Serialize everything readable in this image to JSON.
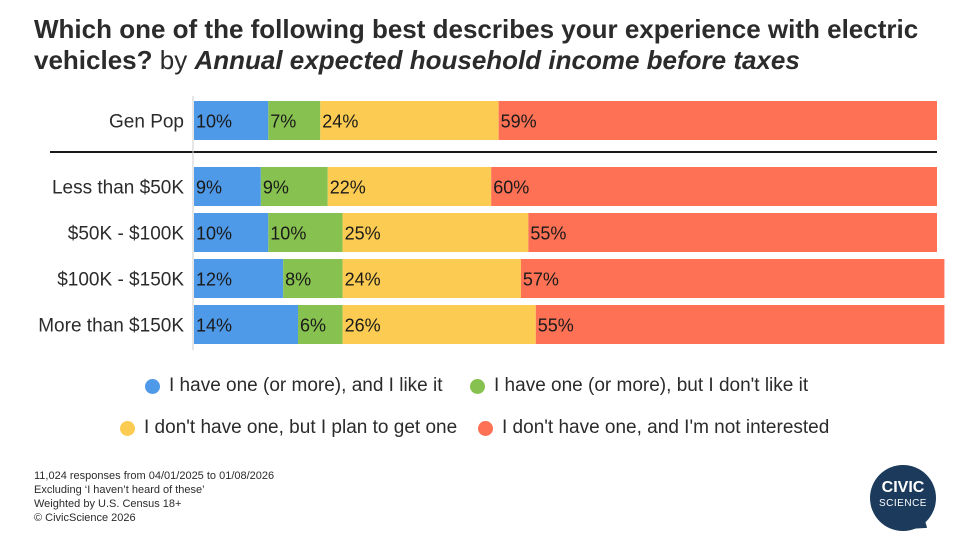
{
  "title": {
    "main": "Which one of the following best describes your experience with electric vehicles?",
    "by": "by",
    "dimension": "Annual expected household income before taxes"
  },
  "chart_data": {
    "type": "bar",
    "orientation": "horizontal-stacked-100",
    "categories": [
      "Gen Pop",
      "Less than $50K",
      "$50K - $100K",
      "$100K - $150K",
      "More than $150K"
    ],
    "series": [
      {
        "name": "I have one (or more), and I like it",
        "color": "#4f9ae8",
        "values": [
          10,
          9,
          10,
          12,
          14
        ]
      },
      {
        "name": "I have one (or more), but I don't like it",
        "color": "#87c150",
        "values": [
          7,
          9,
          10,
          8,
          6
        ]
      },
      {
        "name": "I don't have one, but I plan to get one",
        "color": "#fccc52",
        "values": [
          24,
          22,
          25,
          24,
          26
        ]
      },
      {
        "name": "I don't have one, and I'm not interested",
        "color": "#fe7155",
        "values": [
          59,
          60,
          55,
          57,
          55
        ]
      }
    ],
    "value_suffix": "%",
    "xlim": [
      0,
      100
    ]
  },
  "legend": {
    "items": [
      {
        "label": "I have one (or more), and I like it",
        "color": "#4f9ae8"
      },
      {
        "label": "I have one (or more), but I don't like it",
        "color": "#87c150"
      },
      {
        "label": "I don't have one, but I plan to get one",
        "color": "#fccc52"
      },
      {
        "label": "I don't have one, and I'm not interested",
        "color": "#fe7155"
      }
    ]
  },
  "footnotes": [
    "11,024 responses from 04/01/2025 to 01/08/2026",
    "Excluding ‘I haven’t heard of these’",
    "Weighted by U.S. Census 18+",
    "© CivicScience 2026"
  ],
  "logo": {
    "line1": "CIVIC",
    "line2": "SCIENCE"
  }
}
